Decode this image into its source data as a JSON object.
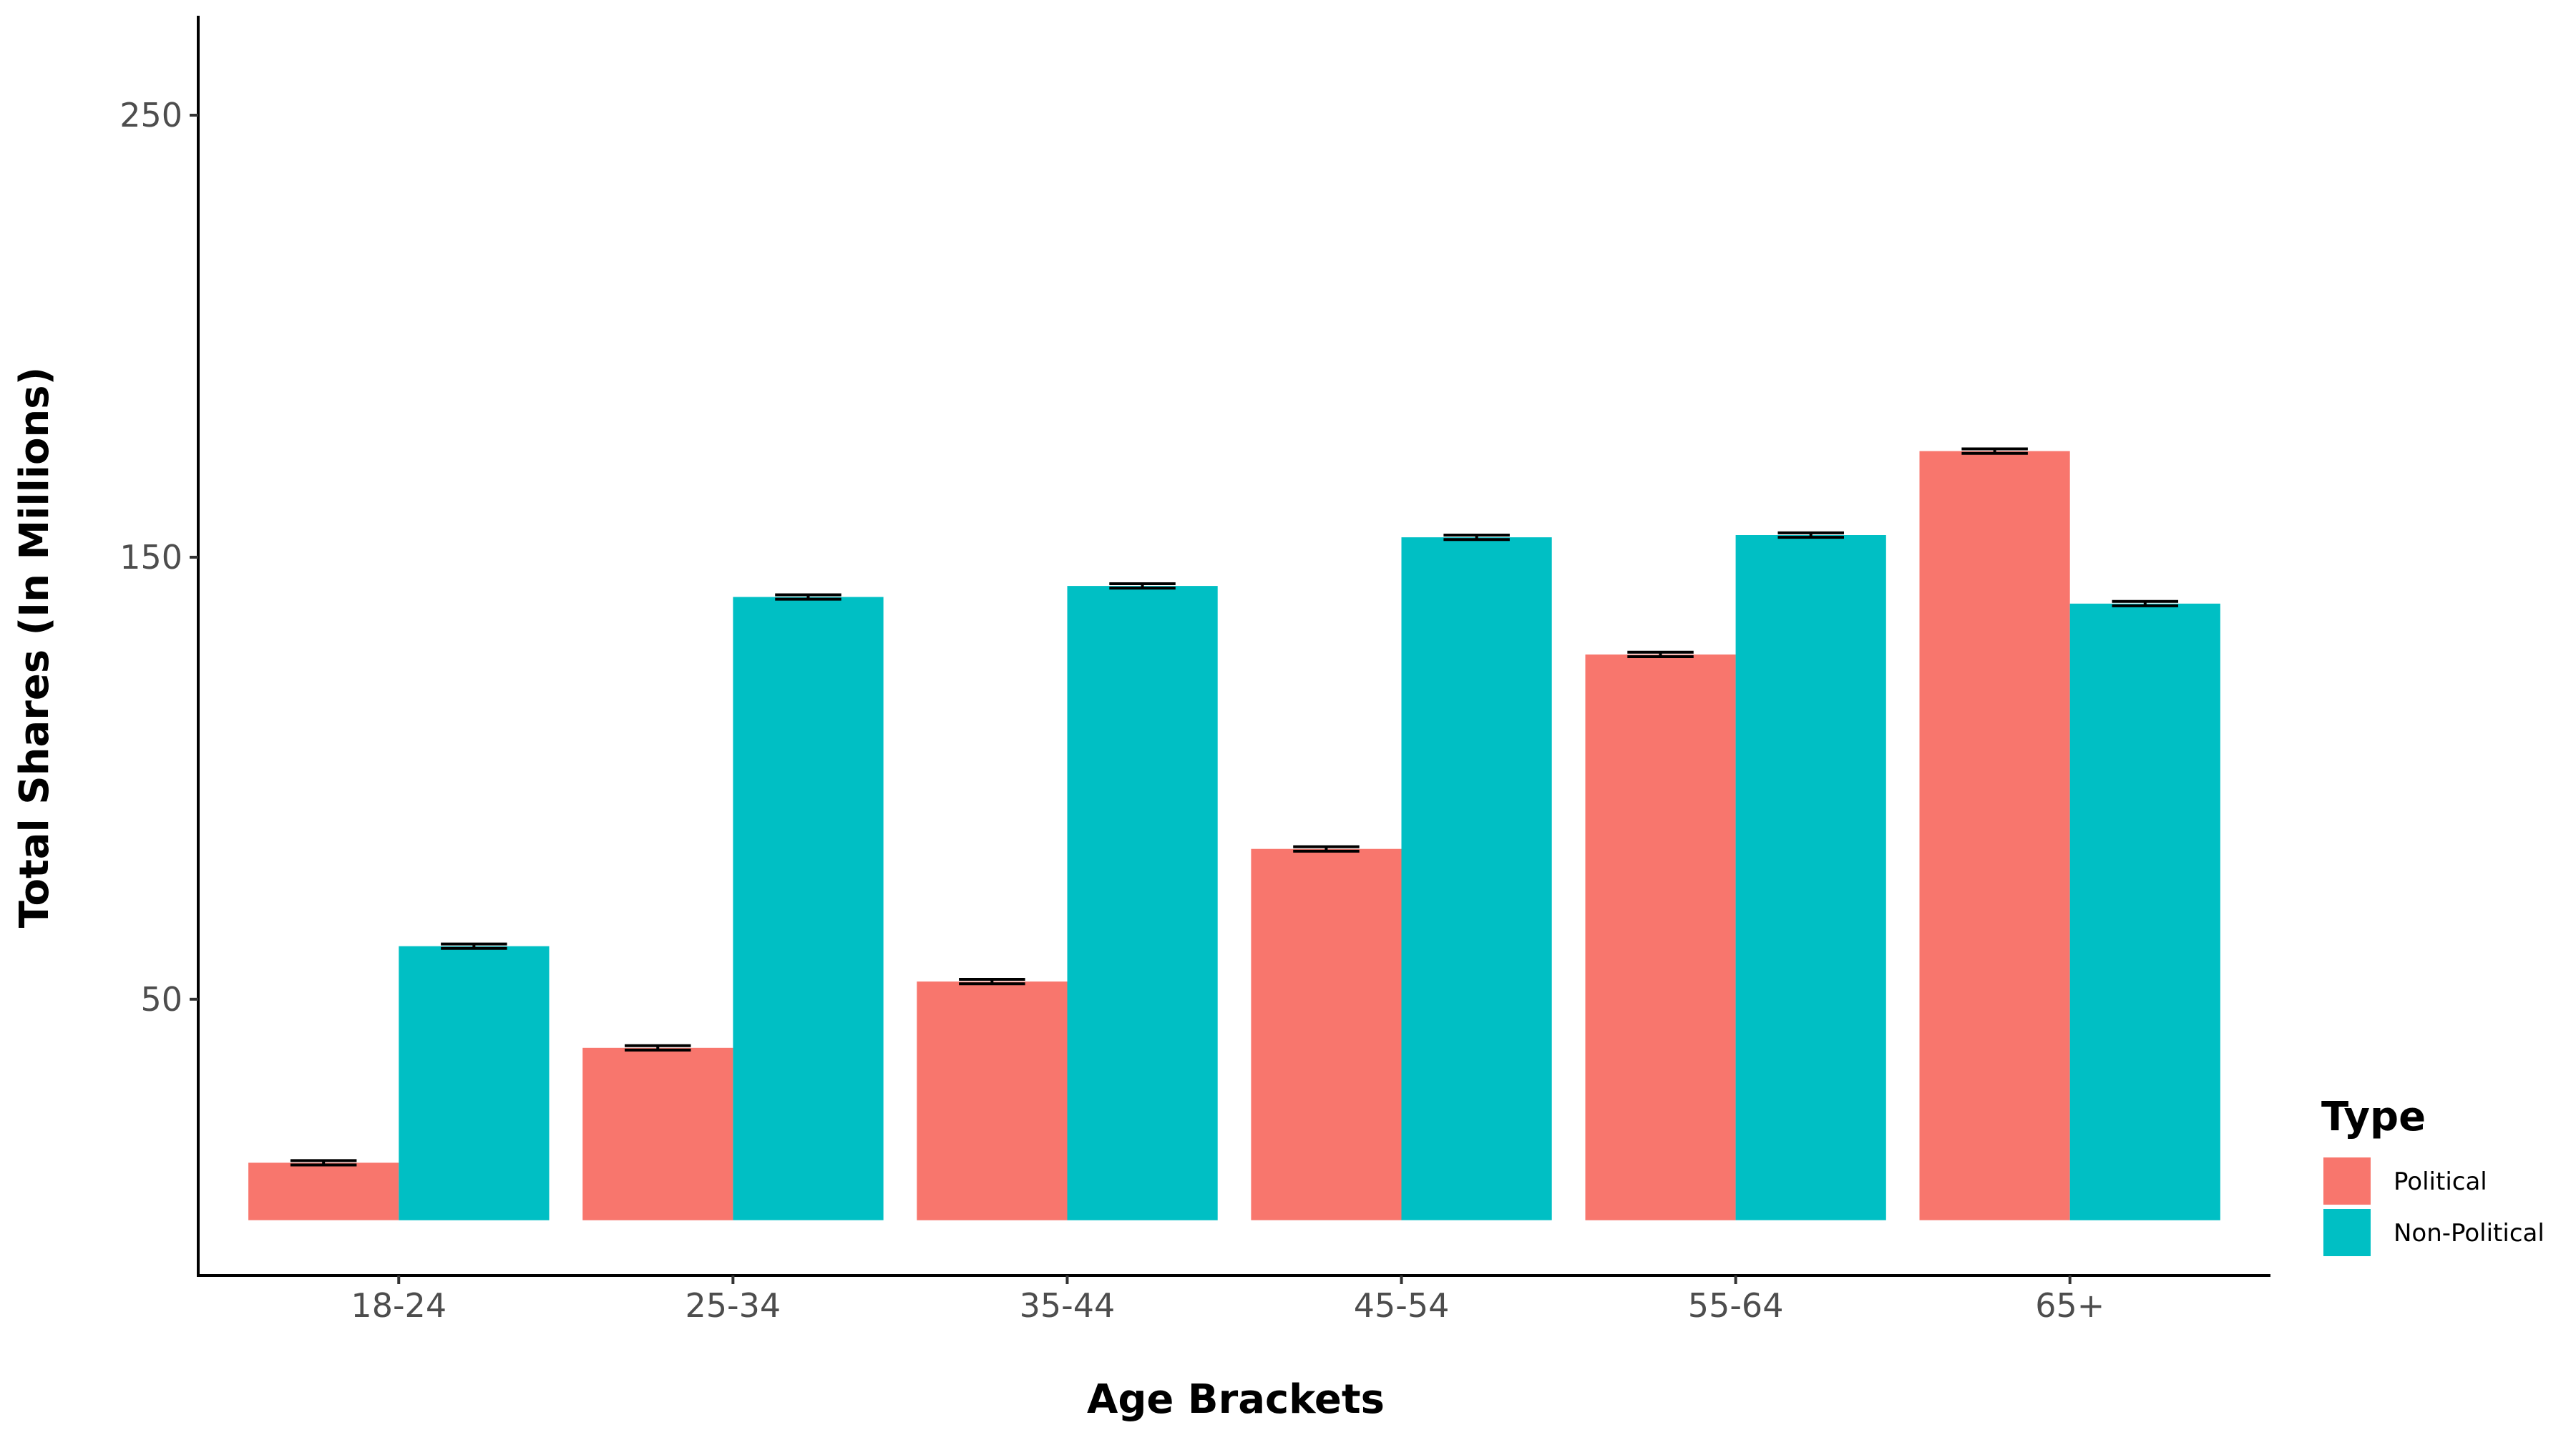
{
  "chart_data": {
    "type": "bar",
    "title": "",
    "xlabel": "Age Brackets",
    "ylabel": "Total Shares (In Millions)",
    "categories": [
      "18-24",
      "25-34",
      "35-44",
      "45-54",
      "55-64",
      "65+"
    ],
    "series": [
      {
        "name": "Political",
        "color": "#F8766D",
        "values": [
          13,
          39,
          54,
          84,
          128,
          174
        ],
        "error": [
          0.5,
          0.5,
          0.5,
          0.5,
          0.5,
          0.5
        ]
      },
      {
        "name": "Non-Political",
        "color": "#00BFC4",
        "values": [
          62,
          141,
          143.5,
          154.5,
          155,
          139.5
        ],
        "error": [
          0.5,
          0.5,
          0.5,
          0.5,
          0.5,
          0.5
        ]
      }
    ],
    "yticks": [
      50,
      150,
      250
    ],
    "ylim": [
      -12.5,
      272.5
    ],
    "legend": {
      "title": "Type",
      "position": "right"
    },
    "grid": false
  }
}
